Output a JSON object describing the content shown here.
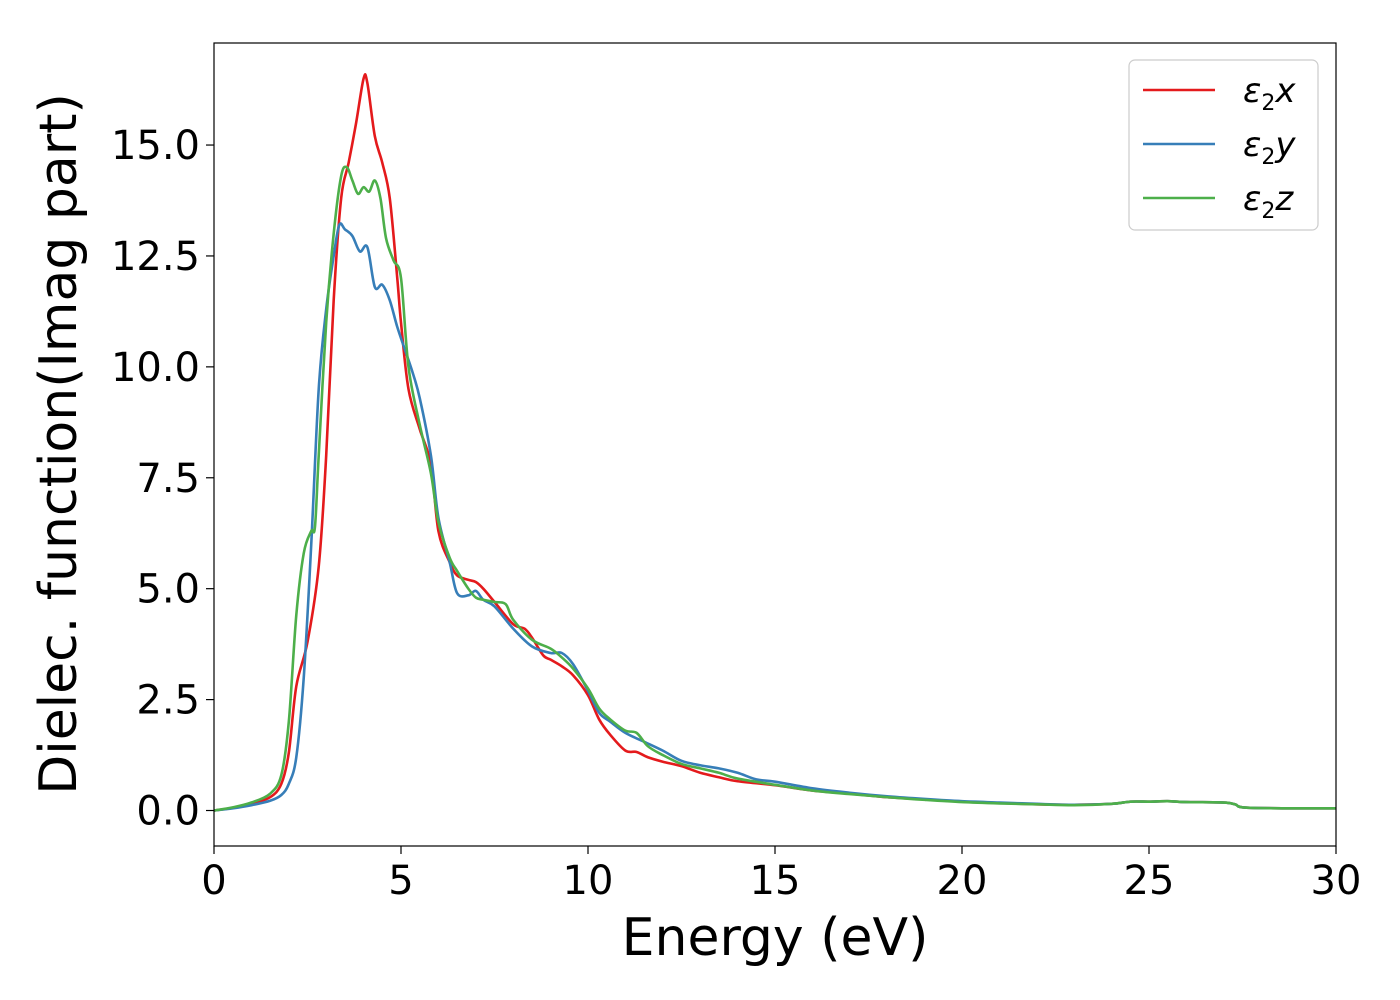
{
  "chart_data": {
    "type": "line",
    "title": "",
    "xlabel": "Energy (eV)",
    "ylabel": "Dielec. function(Imag part)",
    "xlim": [
      0,
      30
    ],
    "ylim": [
      -0.8,
      17.3
    ],
    "xticks": [
      0,
      5,
      10,
      15,
      20,
      25,
      30
    ],
    "xtick_labels": [
      "0",
      "5",
      "10",
      "15",
      "20",
      "25",
      "30"
    ],
    "yticks": [
      0,
      2.5,
      5,
      7.5,
      10,
      12.5,
      15
    ],
    "ytick_labels": [
      "0.0",
      "2.5",
      "5.0",
      "7.5",
      "10.0",
      "12.5",
      "15.0"
    ],
    "grid": false,
    "legend_position": "top-right",
    "series": [
      {
        "name": "ε2x",
        "base": "ε",
        "sub": "2",
        "suffix": "x",
        "color": "#e41a1c",
        "points": [
          [
            0,
            0
          ],
          [
            0.5,
            0.06
          ],
          [
            1,
            0.15
          ],
          [
            1.5,
            0.3
          ],
          [
            1.8,
            0.6
          ],
          [
            2,
            1.3
          ],
          [
            2.2,
            2.8
          ],
          [
            2.5,
            3.8
          ],
          [
            2.8,
            5.5
          ],
          [
            3,
            8
          ],
          [
            3.2,
            11.5
          ],
          [
            3.4,
            13.8
          ],
          [
            3.6,
            14.6
          ],
          [
            3.8,
            15.5
          ],
          [
            4,
            16.5
          ],
          [
            4.1,
            16.4
          ],
          [
            4.3,
            15.2
          ],
          [
            4.5,
            14.6
          ],
          [
            4.7,
            13.8
          ],
          [
            4.9,
            12
          ],
          [
            5,
            11
          ],
          [
            5.2,
            9.5
          ],
          [
            5.5,
            8.6
          ],
          [
            5.8,
            7.8
          ],
          [
            6,
            6.3
          ],
          [
            6.3,
            5.6
          ],
          [
            6.5,
            5.3
          ],
          [
            6.8,
            5.2
          ],
          [
            7,
            5.15
          ],
          [
            7.2,
            5.0
          ],
          [
            7.5,
            4.7
          ],
          [
            8,
            4.2
          ],
          [
            8.3,
            4.1
          ],
          [
            8.5,
            3.9
          ],
          [
            8.8,
            3.5
          ],
          [
            9,
            3.4
          ],
          [
            9.3,
            3.25
          ],
          [
            9.6,
            3.05
          ],
          [
            10,
            2.6
          ],
          [
            10.3,
            2.05
          ],
          [
            10.6,
            1.7
          ],
          [
            11,
            1.35
          ],
          [
            11.3,
            1.32
          ],
          [
            11.6,
            1.2
          ],
          [
            12,
            1.1
          ],
          [
            12.5,
            1.0
          ],
          [
            13,
            0.85
          ],
          [
            13.5,
            0.75
          ],
          [
            14,
            0.66
          ],
          [
            15,
            0.57
          ],
          [
            16,
            0.45
          ],
          [
            17,
            0.38
          ],
          [
            18,
            0.3
          ],
          [
            19,
            0.25
          ],
          [
            20,
            0.2
          ],
          [
            21,
            0.17
          ],
          [
            22,
            0.14
          ],
          [
            23,
            0.13
          ],
          [
            24,
            0.15
          ],
          [
            24.5,
            0.2
          ],
          [
            25,
            0.2
          ],
          [
            25.5,
            0.21
          ],
          [
            26,
            0.19
          ],
          [
            27,
            0.18
          ],
          [
            27.3,
            0.14
          ],
          [
            27.7,
            0.06
          ],
          [
            30,
            0.05
          ]
        ]
      },
      {
        "name": "ε2y",
        "base": "ε",
        "sub": "2",
        "suffix": "y",
        "color": "#377eb8",
        "points": [
          [
            0,
            0
          ],
          [
            0.5,
            0.05
          ],
          [
            1,
            0.12
          ],
          [
            1.5,
            0.22
          ],
          [
            1.8,
            0.35
          ],
          [
            2,
            0.6
          ],
          [
            2.2,
            1.2
          ],
          [
            2.4,
            3.0
          ],
          [
            2.6,
            6.0
          ],
          [
            2.8,
            9.5
          ],
          [
            3,
            11.3
          ],
          [
            3.2,
            12.5
          ],
          [
            3.35,
            13.2
          ],
          [
            3.5,
            13.1
          ],
          [
            3.7,
            12.95
          ],
          [
            3.9,
            12.6
          ],
          [
            4.1,
            12.7
          ],
          [
            4.3,
            11.8
          ],
          [
            4.5,
            11.85
          ],
          [
            4.7,
            11.5
          ],
          [
            4.9,
            10.9
          ],
          [
            5.1,
            10.4
          ],
          [
            5.3,
            9.9
          ],
          [
            5.5,
            9.3
          ],
          [
            5.8,
            8.0
          ],
          [
            6,
            6.6
          ],
          [
            6.3,
            5.6
          ],
          [
            6.5,
            4.9
          ],
          [
            6.8,
            4.85
          ],
          [
            7,
            4.95
          ],
          [
            7.2,
            4.75
          ],
          [
            7.5,
            4.6
          ],
          [
            8,
            4.1
          ],
          [
            8.5,
            3.7
          ],
          [
            9,
            3.55
          ],
          [
            9.3,
            3.55
          ],
          [
            9.6,
            3.3
          ],
          [
            10,
            2.7
          ],
          [
            10.3,
            2.2
          ],
          [
            10.6,
            2.0
          ],
          [
            11,
            1.75
          ],
          [
            11.5,
            1.55
          ],
          [
            12,
            1.35
          ],
          [
            12.5,
            1.12
          ],
          [
            13,
            1.02
          ],
          [
            13.5,
            0.95
          ],
          [
            14,
            0.85
          ],
          [
            14.5,
            0.7
          ],
          [
            15,
            0.65
          ],
          [
            16,
            0.5
          ],
          [
            17,
            0.4
          ],
          [
            18,
            0.32
          ],
          [
            19,
            0.26
          ],
          [
            20,
            0.21
          ],
          [
            21,
            0.18
          ],
          [
            22,
            0.15
          ],
          [
            23,
            0.13
          ],
          [
            24,
            0.15
          ],
          [
            24.5,
            0.2
          ],
          [
            25,
            0.2
          ],
          [
            25.5,
            0.21
          ],
          [
            26,
            0.19
          ],
          [
            27,
            0.18
          ],
          [
            27.3,
            0.14
          ],
          [
            27.7,
            0.06
          ],
          [
            30,
            0.05
          ]
        ]
      },
      {
        "name": "ε2z",
        "base": "ε",
        "sub": "2",
        "suffix": "z",
        "color": "#4daf4a",
        "points": [
          [
            0,
            0
          ],
          [
            0.5,
            0.07
          ],
          [
            1,
            0.18
          ],
          [
            1.5,
            0.38
          ],
          [
            1.8,
            0.8
          ],
          [
            2,
            2.0
          ],
          [
            2.2,
            4.4
          ],
          [
            2.4,
            5.8
          ],
          [
            2.6,
            6.3
          ],
          [
            2.7,
            6.4
          ],
          [
            2.8,
            8.0
          ],
          [
            3,
            11.0
          ],
          [
            3.2,
            13.0
          ],
          [
            3.4,
            14.3
          ],
          [
            3.55,
            14.5
          ],
          [
            3.7,
            14.2
          ],
          [
            3.85,
            13.9
          ],
          [
            4,
            14.05
          ],
          [
            4.15,
            13.95
          ],
          [
            4.3,
            14.2
          ],
          [
            4.45,
            13.8
          ],
          [
            4.6,
            12.9
          ],
          [
            4.8,
            12.4
          ],
          [
            5,
            12.0
          ],
          [
            5.2,
            10.0
          ],
          [
            5.5,
            8.7
          ],
          [
            5.8,
            7.6
          ],
          [
            6,
            6.5
          ],
          [
            6.3,
            5.7
          ],
          [
            6.5,
            5.4
          ],
          [
            6.8,
            5.0
          ],
          [
            7,
            4.8
          ],
          [
            7.2,
            4.75
          ],
          [
            7.5,
            4.7
          ],
          [
            7.8,
            4.65
          ],
          [
            8,
            4.3
          ],
          [
            8.5,
            3.85
          ],
          [
            9,
            3.65
          ],
          [
            9.3,
            3.45
          ],
          [
            9.6,
            3.2
          ],
          [
            10,
            2.75
          ],
          [
            10.3,
            2.3
          ],
          [
            10.6,
            2.05
          ],
          [
            11,
            1.8
          ],
          [
            11.3,
            1.75
          ],
          [
            11.6,
            1.45
          ],
          [
            12,
            1.25
          ],
          [
            12.5,
            1.05
          ],
          [
            13,
            0.95
          ],
          [
            13.5,
            0.85
          ],
          [
            14,
            0.72
          ],
          [
            15,
            0.58
          ],
          [
            16,
            0.45
          ],
          [
            17,
            0.37
          ],
          [
            18,
            0.3
          ],
          [
            19,
            0.24
          ],
          [
            20,
            0.19
          ],
          [
            21,
            0.16
          ],
          [
            22,
            0.14
          ],
          [
            23,
            0.12
          ],
          [
            24,
            0.15
          ],
          [
            24.5,
            0.2
          ],
          [
            25,
            0.2
          ],
          [
            25.5,
            0.21
          ],
          [
            26,
            0.19
          ],
          [
            27,
            0.18
          ],
          [
            27.3,
            0.14
          ],
          [
            27.7,
            0.06
          ],
          [
            30,
            0.05
          ]
        ]
      }
    ]
  }
}
